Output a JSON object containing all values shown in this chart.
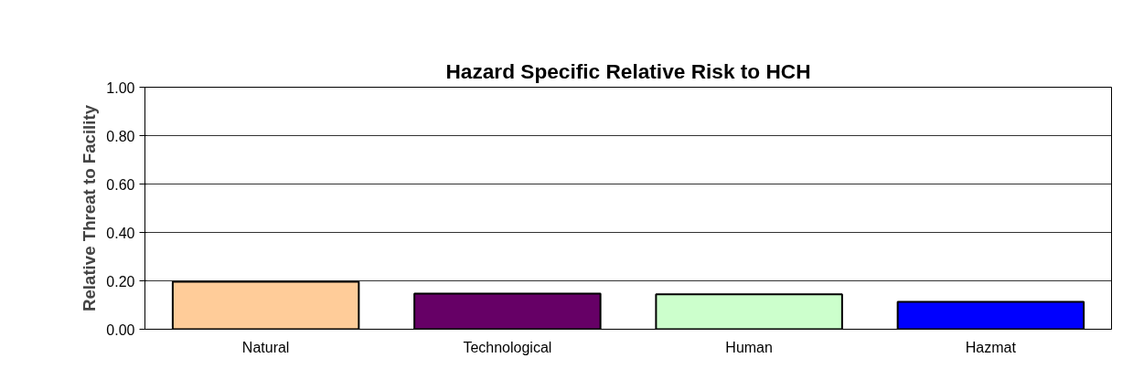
{
  "chart_data": {
    "type": "bar",
    "title": "Hazard Specific Relative Risk to HCH",
    "ylabel": "Relative Threat to Facility",
    "categories": [
      "Natural",
      "Technological",
      "Human",
      "Hazmat"
    ],
    "values": [
      0.196,
      0.147,
      0.144,
      0.113
    ],
    "colors": [
      "#ffcc99",
      "#660066",
      "#ccffcc",
      "#0000ff"
    ],
    "ylim": [
      0,
      1
    ],
    "yticks": [
      {
        "value": 0,
        "label": "0.00"
      },
      {
        "value": 0.2,
        "label": "0.20"
      },
      {
        "value": 0.4,
        "label": "0.40"
      },
      {
        "value": 0.6,
        "label": "0.60"
      },
      {
        "value": 0.8,
        "label": "0.80"
      },
      {
        "value": 1,
        "label": "1.00"
      }
    ],
    "grid": "y"
  }
}
